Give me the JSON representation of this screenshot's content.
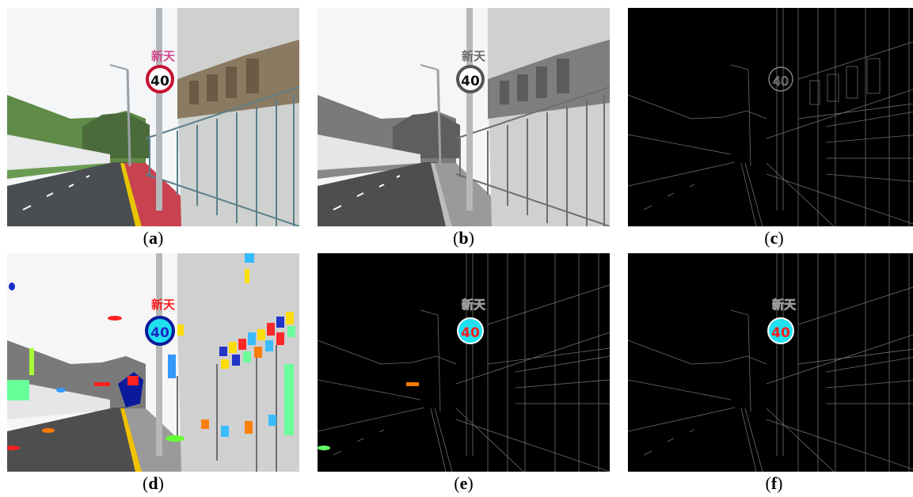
{
  "panels": [
    {
      "id": "a",
      "caption_open": "(",
      "caption_letter": "a",
      "caption_close": ")"
    },
    {
      "id": "b",
      "caption_open": "(",
      "caption_letter": "b",
      "caption_close": ")"
    },
    {
      "id": "c",
      "caption_open": "(",
      "caption_letter": "c",
      "caption_close": ")"
    },
    {
      "id": "d",
      "caption_open": "(",
      "caption_letter": "d",
      "caption_close": ")"
    },
    {
      "id": "e",
      "caption_open": "(",
      "caption_letter": "e",
      "caption_close": ")"
    },
    {
      "id": "f",
      "caption_open": "(",
      "caption_letter": "f",
      "caption_close": ")"
    }
  ],
  "sign": {
    "speed_limit": "40",
    "shop_glyphs": "新天"
  },
  "colors": {
    "sky": "#f4f6f8",
    "road": "#4a4d52",
    "kerb_yellow": "#e7c500",
    "sidewalk_red": "#c8434f",
    "building": "#cfd1cf",
    "sign_ring": "#c8102e",
    "edge_background": "#000000",
    "highlight_cyan": "#20e0f0",
    "highlight_red": "#ff1a1a"
  }
}
